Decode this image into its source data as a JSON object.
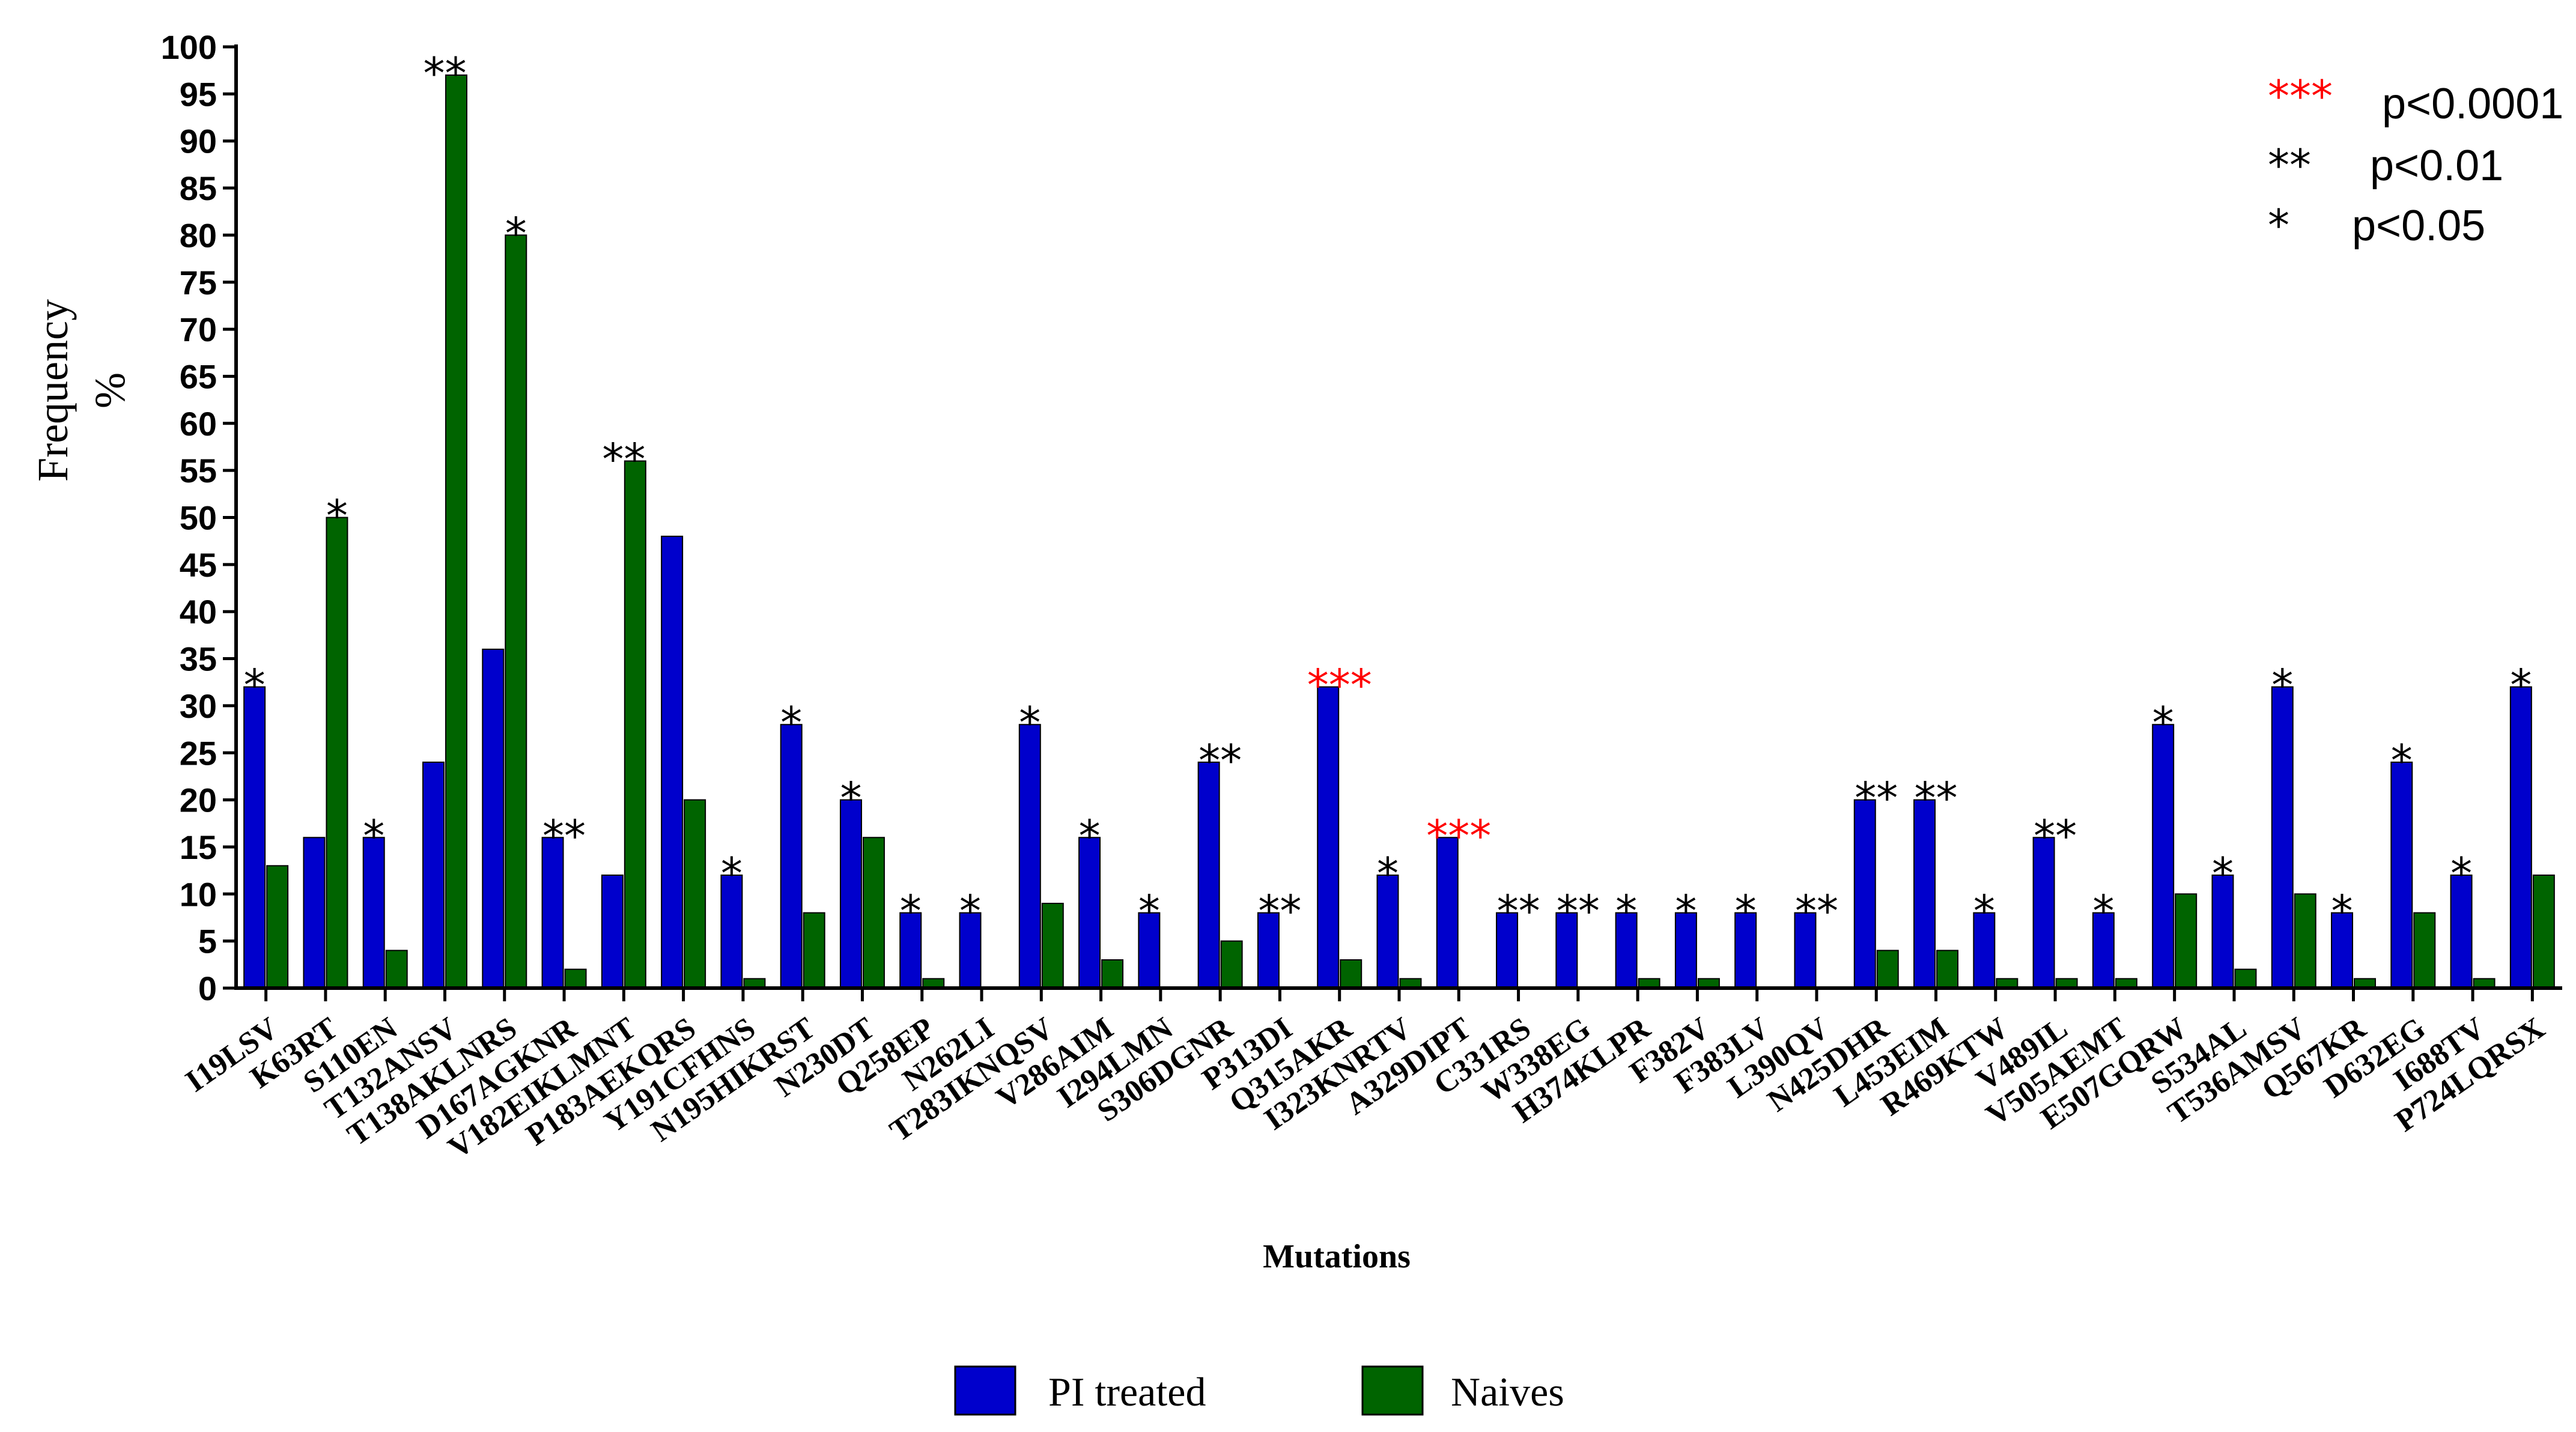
{
  "chart_data": {
    "type": "bar",
    "ylabel": "Frequency\n%",
    "ylabel_lines": [
      "Frequency",
      "%"
    ],
    "xlabel": "Mutations",
    "ylim": [
      0,
      100
    ],
    "yticks": [
      0,
      5,
      10,
      15,
      20,
      25,
      30,
      35,
      40,
      45,
      50,
      55,
      60,
      65,
      70,
      75,
      80,
      85,
      90,
      95,
      100
    ],
    "categories": [
      "I19LSV",
      "K63RT",
      "S110EN",
      "T132ANSV",
      "T138AKLNRS",
      "D167AGKNR",
      "V182EIKLMNT",
      "P183AEKQRS",
      "Y191CFHNS",
      "N195HIKRST",
      "N230DT",
      "Q258EP",
      "N262LI",
      "T283IKNQSV",
      "V286AIM",
      "I294LMN",
      "S306DGNR",
      "P313DI",
      "Q315AKR",
      "I323KNRTV",
      "A329DIPT",
      "C331RS",
      "W338EG",
      "H374KLPR",
      "F382V",
      "F383LV",
      "L390QV",
      "N425DHR",
      "L453EIM",
      "R469KTW",
      "V489IL",
      "V505AEMT",
      "E507GQRW",
      "S534AL",
      "T536AMSV",
      "Q567KR",
      "D632EG",
      "I688TV",
      "P724LQRSX"
    ],
    "series": [
      {
        "name": "PI treated",
        "color": "#0000cc",
        "values": [
          32,
          16,
          16,
          24,
          36,
          16,
          12,
          48,
          12,
          28,
          20,
          8,
          8,
          28,
          16,
          8,
          24,
          8,
          32,
          12,
          16,
          8,
          8,
          8,
          8,
          8,
          8,
          20,
          20,
          8,
          16,
          8,
          28,
          12,
          32,
          8,
          24,
          12,
          32
        ]
      },
      {
        "name": "Naives",
        "color": "#006400",
        "values": [
          13,
          50,
          4,
          97,
          80,
          2,
          56,
          20,
          1,
          8,
          16,
          1,
          0,
          9,
          3,
          0,
          5,
          0,
          3,
          1,
          0,
          0,
          0,
          1,
          1,
          0,
          0,
          4,
          4,
          1,
          1,
          1,
          10,
          2,
          10,
          1,
          8,
          1,
          12
        ]
      }
    ],
    "significance": [
      "*",
      "*",
      "*",
      "**",
      "*",
      "**",
      "**",
      "",
      "*",
      "*",
      "*",
      "*",
      "*",
      "*",
      "*",
      "*",
      "**",
      "**",
      "***",
      "*",
      "***",
      "**",
      "**",
      "*",
      "*",
      "*",
      "**",
      "**",
      "**",
      "*",
      "**",
      "*",
      "*",
      "*",
      "*",
      "*",
      "*",
      "*",
      "*"
    ],
    "significance_legend": [
      {
        "stars": "***",
        "label": "p<0.0001",
        "color": "#ff0000"
      },
      {
        "stars": "**",
        "label": "p<0.01",
        "color": "#000000"
      },
      {
        "stars": "*",
        "label": "p<0.05",
        "color": "#000000"
      }
    ],
    "legend": [
      "PI treated",
      "Naives"
    ]
  }
}
